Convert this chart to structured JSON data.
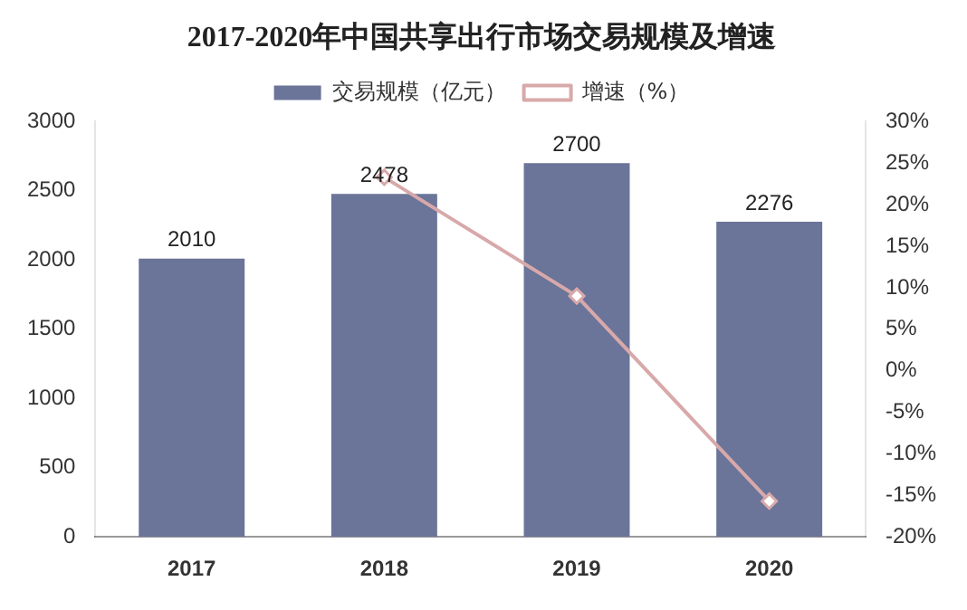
{
  "chart_data": {
    "type": "bar",
    "title": "2017-2020年中国共享出行市场交易规模及增速",
    "categories": [
      "2017",
      "2018",
      "2019",
      "2020"
    ],
    "series": [
      {
        "name": "交易规模（亿元）",
        "color": "#6b7499",
        "values": [
          2010,
          2478,
          2700,
          2276
        ],
        "value_labels": [
          "2010",
          "2478",
          "2700",
          "2276"
        ]
      },
      {
        "name": "增速（%）",
        "type": "line",
        "color": "#d8a9aa",
        "axis": "y2",
        "marker": "diamond",
        "values": [
          null,
          23.3,
          9.0,
          -15.7
        ]
      }
    ],
    "ylim": [
      0,
      3000
    ],
    "yticks": [
      0,
      500,
      1000,
      1500,
      2000,
      2500,
      3000
    ],
    "y2lim": [
      -20,
      30
    ],
    "y2ticks": [
      {
        "value": 30,
        "label": "30%"
      },
      {
        "value": 25,
        "label": "25%"
      },
      {
        "value": 20,
        "label": "20%"
      },
      {
        "value": 15,
        "label": "15%"
      },
      {
        "value": 10,
        "label": "10%"
      },
      {
        "value": 5,
        "label": "5%"
      },
      {
        "value": 0,
        "label": "0%"
      },
      {
        "value": -5,
        "label": "-5%"
      },
      {
        "value": -10,
        "label": "-10%"
      },
      {
        "value": -15,
        "label": "-15%"
      },
      {
        "value": -20,
        "label": "-20%"
      }
    ],
    "grid": false,
    "legend": "top"
  }
}
